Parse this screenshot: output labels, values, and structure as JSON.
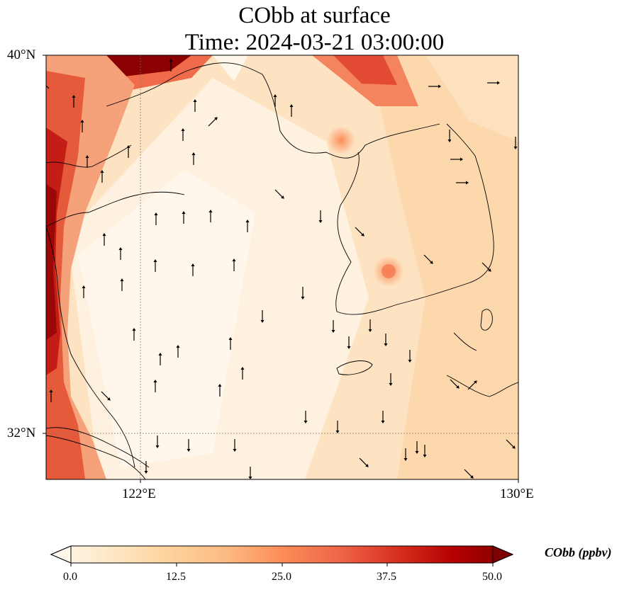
{
  "title": {
    "line1": "CObb at surface",
    "line2": "Time: 2024-03-21 03:00:00"
  },
  "map": {
    "lat_labels": [
      "40°N",
      "32°N"
    ],
    "lon_labels": [
      "122°E",
      "130°E"
    ],
    "gridlines": "dotted",
    "region": "Yellow Sea / Korean Peninsula / East China coast",
    "colormap": "OrRd",
    "wind_vectors": "black arrows, mostly northward over sea"
  },
  "colorbar": {
    "title": "CObb (ppbv)",
    "ticks": [
      "0.0",
      "12.5",
      "25.0",
      "37.5",
      "50.0"
    ],
    "min": 0,
    "max": 50,
    "extend": "both",
    "colors": [
      "#fff7ec",
      "#fee8c8",
      "#fdd49e",
      "#fdbb84",
      "#fc8d59",
      "#ef6548",
      "#d7301f",
      "#b30000",
      "#7f0000"
    ]
  }
}
